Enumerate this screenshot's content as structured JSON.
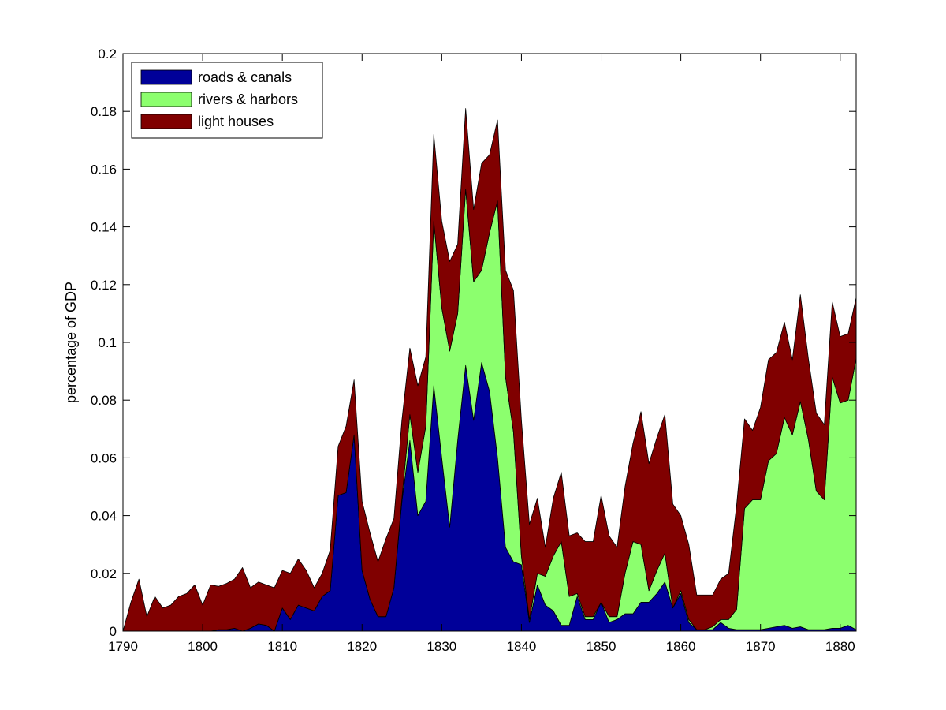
{
  "chart_data": {
    "type": "area",
    "stacked": true,
    "title": "",
    "xlabel": "",
    "ylabel": "percentage of GDP",
    "xlim": [
      1790,
      1882
    ],
    "ylim": [
      0,
      0.2
    ],
    "xticks": [
      1790,
      1800,
      1810,
      1820,
      1830,
      1840,
      1850,
      1860,
      1870,
      1880
    ],
    "yticks": [
      0,
      0.02,
      0.04,
      0.06,
      0.08,
      0.1,
      0.12,
      0.14,
      0.16,
      0.18,
      0.2
    ],
    "ytick_labels": [
      "0",
      "0.02",
      "0.04",
      "0.06",
      "0.08",
      "0.1",
      "0.12",
      "0.14",
      "0.16",
      "0.18",
      "0.2"
    ],
    "grid": false,
    "legend_position": "top-left",
    "x": [
      1790,
      1791,
      1792,
      1793,
      1794,
      1795,
      1796,
      1797,
      1798,
      1799,
      1800,
      1801,
      1802,
      1803,
      1804,
      1805,
      1806,
      1807,
      1808,
      1809,
      1810,
      1811,
      1812,
      1813,
      1814,
      1815,
      1816,
      1817,
      1818,
      1819,
      1820,
      1821,
      1822,
      1823,
      1824,
      1825,
      1826,
      1827,
      1828,
      1829,
      1830,
      1831,
      1832,
      1833,
      1834,
      1835,
      1836,
      1837,
      1838,
      1839,
      1840,
      1841,
      1842,
      1843,
      1844,
      1845,
      1846,
      1847,
      1848,
      1849,
      1850,
      1851,
      1852,
      1853,
      1854,
      1855,
      1856,
      1857,
      1858,
      1859,
      1860,
      1861,
      1862,
      1863,
      1864,
      1865,
      1866,
      1867,
      1868,
      1869,
      1870,
      1871,
      1872,
      1873,
      1874,
      1875,
      1876,
      1877,
      1878,
      1879,
      1880,
      1881,
      1882
    ],
    "series": [
      {
        "name": "roads & canals",
        "color": "#000099",
        "values": [
          0,
          0,
          0,
          0,
          0,
          0,
          0,
          0,
          0,
          0,
          0,
          0,
          0.0005,
          0.0005,
          0.001,
          0,
          0.001,
          0.0025,
          0.002,
          0,
          0.008,
          0.004,
          0.009,
          0.008,
          0.007,
          0.012,
          0.014,
          0.047,
          0.048,
          0.068,
          0.021,
          0.011,
          0.005,
          0.005,
          0.015,
          0.045,
          0.066,
          0.04,
          0.045,
          0.085,
          0.06,
          0.036,
          0.066,
          0.092,
          0.073,
          0.093,
          0.083,
          0.06,
          0.029,
          0.024,
          0.023,
          0.003,
          0.016,
          0.009,
          0.007,
          0.002,
          0.002,
          0.012,
          0.004,
          0.004,
          0.01,
          0.003,
          0.004,
          0.006,
          0.006,
          0.01,
          0.01,
          0.013,
          0.017,
          0.008,
          0.013,
          0.003,
          0.0005,
          0.0005,
          0.0005,
          0.003,
          0.001,
          0.0005,
          0.0005,
          0.0005,
          0.0005,
          0.001,
          0.0015,
          0.002,
          0.001,
          0.0015,
          0.0005,
          0.0005,
          0.0005,
          0.001,
          0.001,
          0.002,
          0.0005
        ]
      },
      {
        "name": "rivers & harbors",
        "color": "#8cff6e",
        "values": [
          0,
          0,
          0,
          0,
          0,
          0,
          0,
          0,
          0,
          0,
          0,
          0,
          0,
          0,
          0,
          0,
          0,
          0,
          0,
          0,
          0,
          0,
          0,
          0,
          0,
          0,
          0,
          0,
          0,
          0,
          0,
          0,
          0,
          0,
          0,
          0.001,
          0.009,
          0.015,
          0.026,
          0.057,
          0.052,
          0.061,
          0.044,
          0.061,
          0.048,
          0.032,
          0.055,
          0.089,
          0.059,
          0.045,
          0.003,
          0.001,
          0.004,
          0.01,
          0.019,
          0.029,
          0.01,
          0.001,
          0.001,
          0.001,
          0,
          0.002,
          0.001,
          0.014,
          0.025,
          0.02,
          0.004,
          0.008,
          0.01,
          0,
          0.001,
          0.001,
          0,
          0,
          0.001,
          0.001,
          0.003,
          0.007,
          0.042,
          0.045,
          0.045,
          0.058,
          0.06,
          0.072,
          0.067,
          0.078,
          0.066,
          0.048,
          0.045,
          0.087,
          0.078,
          0.078,
          0.094
        ]
      },
      {
        "name": "light houses",
        "color": "#800000",
        "values": [
          0,
          0.01,
          0.018,
          0.005,
          0.012,
          0.008,
          0.009,
          0.012,
          0.013,
          0.016,
          0.009,
          0.016,
          0.015,
          0.016,
          0.017,
          0.022,
          0.014,
          0.0145,
          0.014,
          0.015,
          0.013,
          0.016,
          0.016,
          0.013,
          0.008,
          0.008,
          0.014,
          0.017,
          0.023,
          0.019,
          0.024,
          0.023,
          0.019,
          0.027,
          0.024,
          0.027,
          0.023,
          0.03,
          0.024,
          0.03,
          0.03,
          0.031,
          0.024,
          0.028,
          0.025,
          0.037,
          0.027,
          0.028,
          0.037,
          0.049,
          0.047,
          0.033,
          0.026,
          0.01,
          0.02,
          0.024,
          0.021,
          0.021,
          0.026,
          0.026,
          0.037,
          0.028,
          0.024,
          0.03,
          0.034,
          0.046,
          0.044,
          0.046,
          0.048,
          0.036,
          0.026,
          0.026,
          0.012,
          0.012,
          0.011,
          0.014,
          0.016,
          0.036,
          0.031,
          0.024,
          0.032,
          0.035,
          0.035,
          0.033,
          0.026,
          0.037,
          0.028,
          0.027,
          0.026,
          0.026,
          0.023,
          0.023,
          0.021
        ]
      }
    ]
  }
}
